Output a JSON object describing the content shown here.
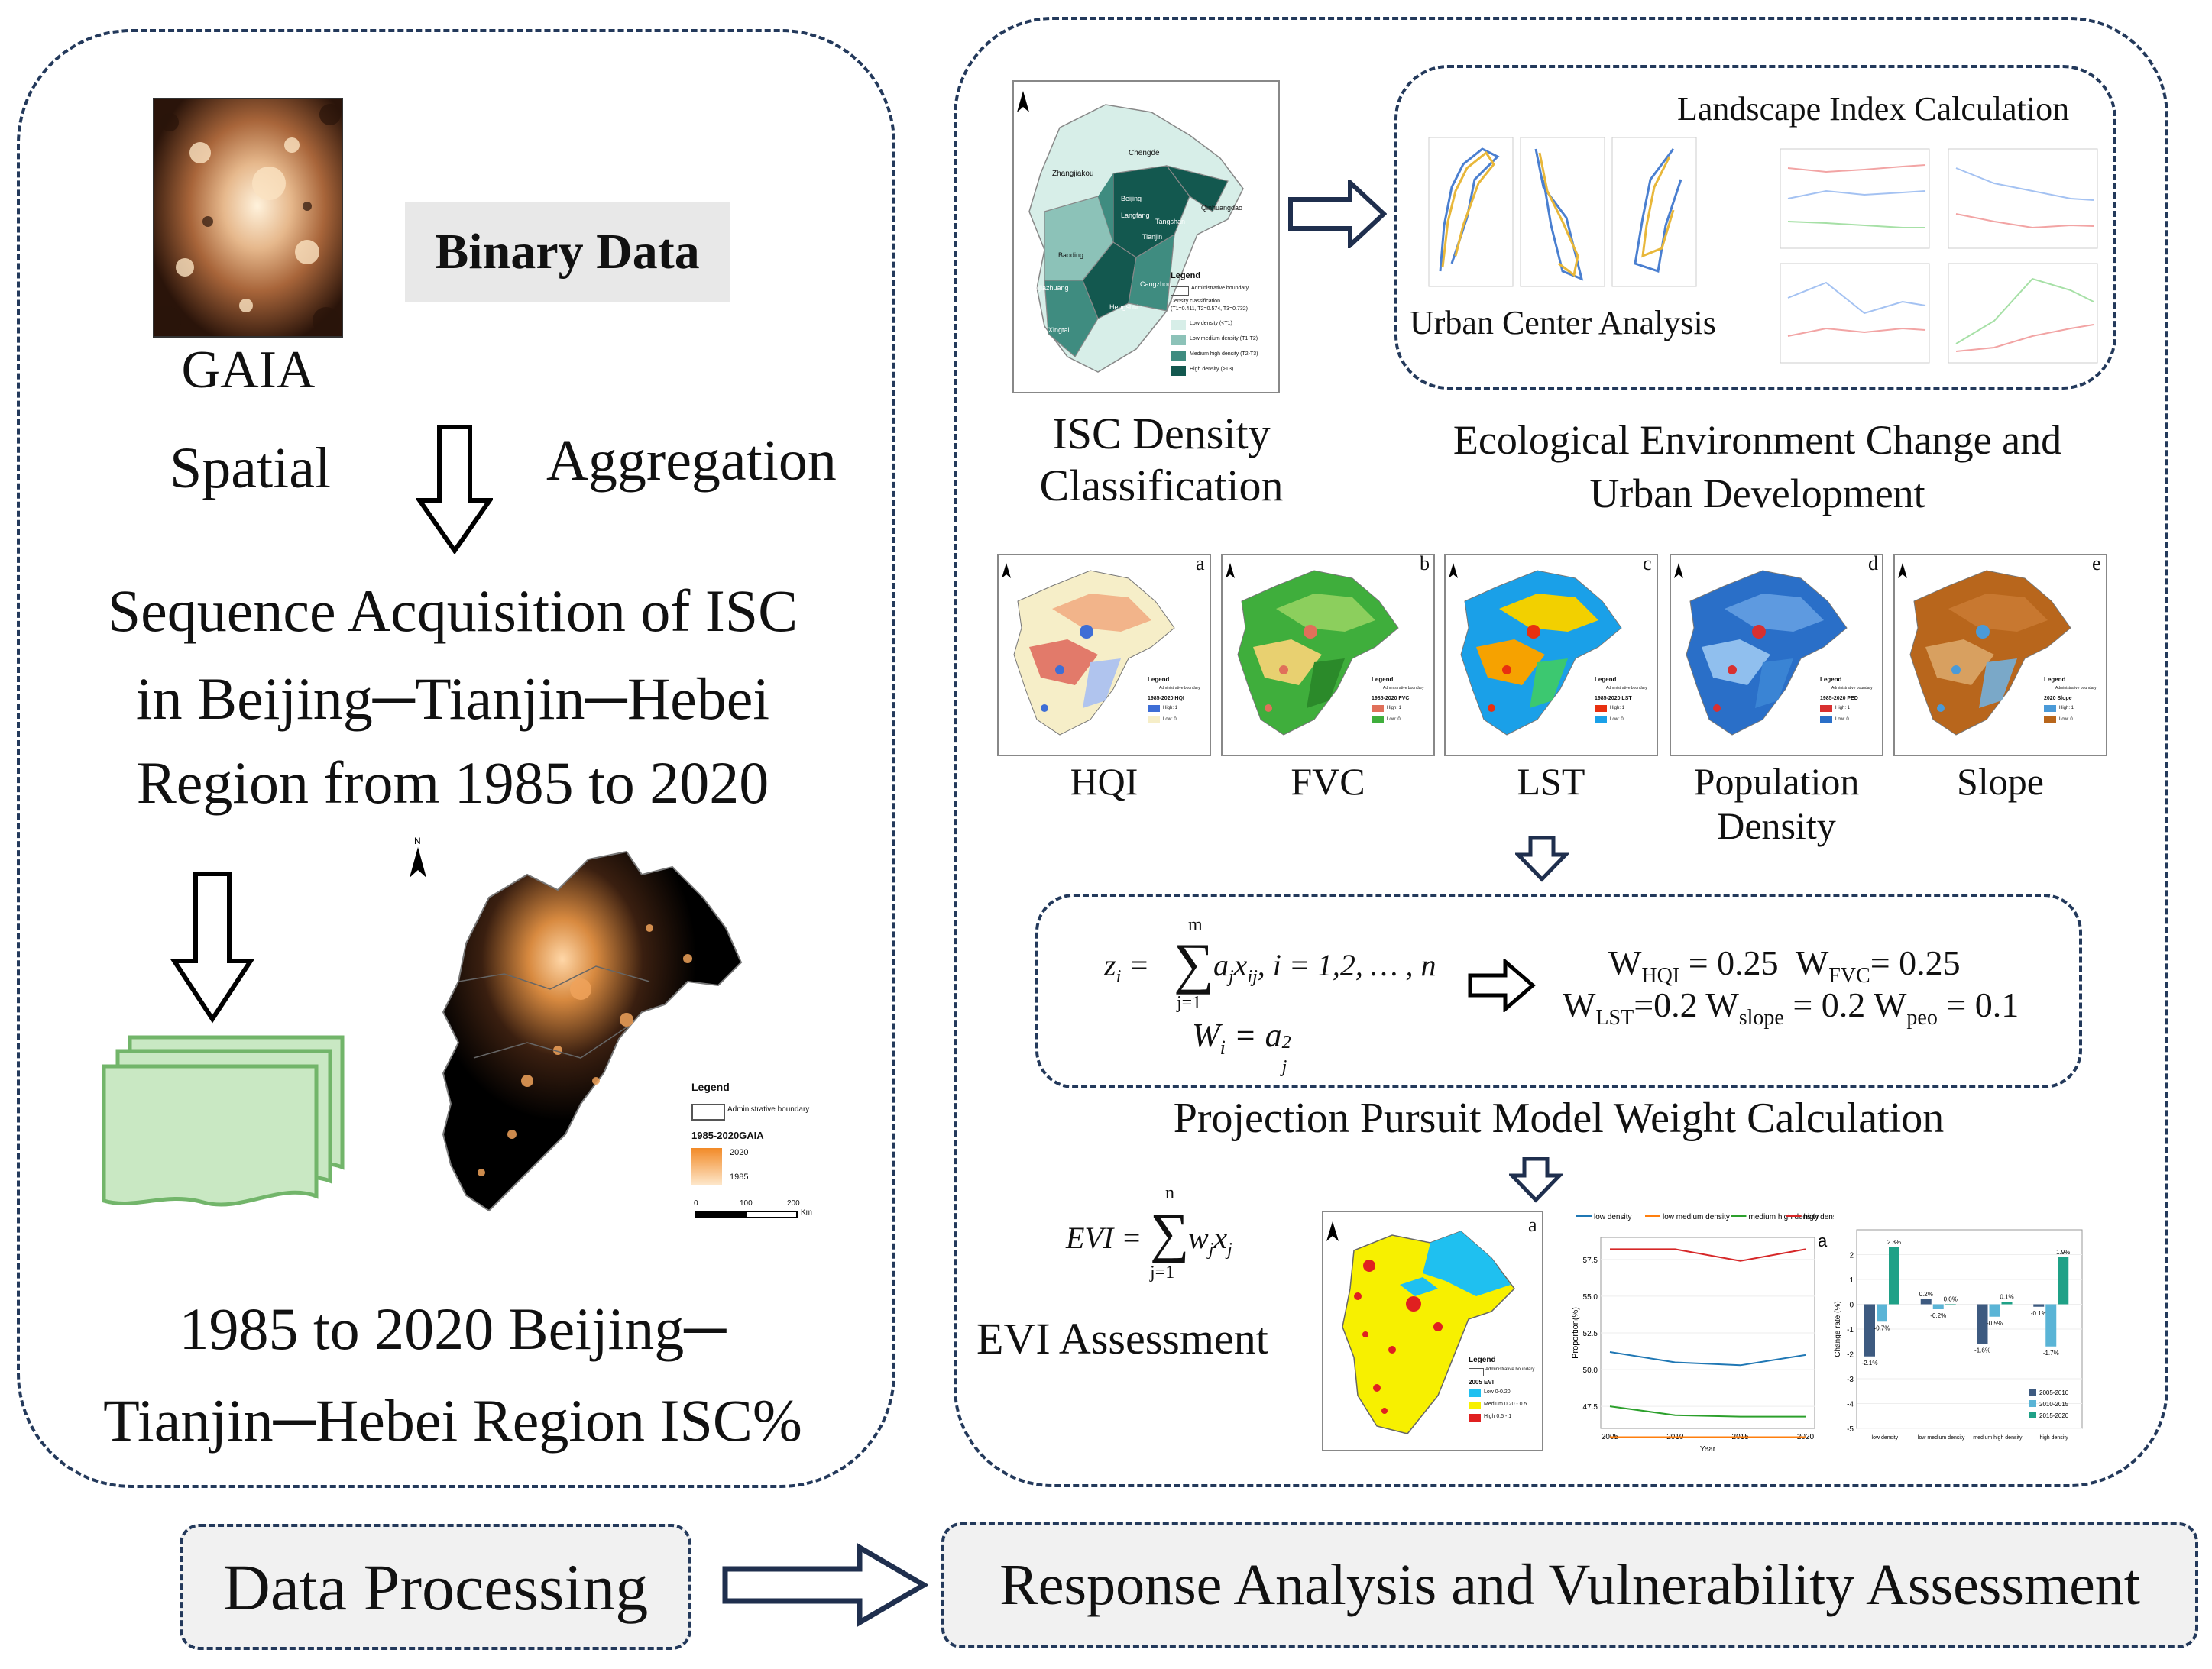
{
  "left": {
    "gaia_label": "GAIA",
    "binary_label": "Binary Data",
    "spatial_label": "Spatial",
    "aggregation_label": "Aggregation",
    "sequence_lines": [
      "Sequence Acquisition of ISC",
      "in Beijing─Tianjin─Hebei",
      "Region from 1985 to 2020"
    ],
    "result_lines": [
      "1985 to 2020 Beijing─",
      "Tianjin─Hebei Region ISC%"
    ],
    "map_legend": {
      "title": "Legend",
      "boundary": "Administrative boundary",
      "layer": "1985-2020GAIA",
      "high": "2020",
      "low": "1985",
      "scale": [
        "0",
        "100",
        "200"
      ],
      "unit": "Km",
      "north": "N"
    }
  },
  "right": {
    "isc_lines": [
      "ISC Density",
      "Classification"
    ],
    "isc_map": {
      "cities": [
        "Chengde",
        "Zhangjiakou",
        "Beijing",
        "Qinhuangdao",
        "Tangshan",
        "Langfang",
        "Tianjin",
        "Baoding",
        "Cangzhou",
        "Shijiazhuang",
        "Hengshui",
        "Xingtai",
        "Handan"
      ],
      "legend_title": "Legend",
      "boundary": "Administrative boundary",
      "classes_title": "Density classification",
      "classes_thresholds": "(T1=0.411, T2=0.574, T3=0.732)",
      "classes": [
        "Low density (<T1)",
        "Low medium density (T1-T2)",
        "Medium high density (T2-T3)",
        "High density (>T3)"
      ],
      "colors": [
        "#d7eee8",
        "#8cc2b8",
        "#3f8c80",
        "#13584f"
      ]
    },
    "landscape_label": "Landscape Index Calculation",
    "urban_center_label": "Urban Center Analysis",
    "eco_lines": [
      "Ecological Environment Change and",
      "Urban Development"
    ],
    "indicators": [
      {
        "letter": "a",
        "label": "HQI",
        "legend": "1985-2020 HQI"
      },
      {
        "letter": "b",
        "label": "FVC",
        "legend": "1985-2020 FVC"
      },
      {
        "letter": "c",
        "label": "LST",
        "legend": "1985-2020 LST"
      },
      {
        "letter": "d",
        "label": "Population\nDensity",
        "legend": "1985-2020 PED"
      },
      {
        "letter": "e",
        "label": "Slope",
        "legend": "2020 Slope"
      }
    ],
    "indicator_legend": {
      "title": "Legend",
      "boundary": "Administrative boundary",
      "high": "High: 1",
      "low": "Low: 0"
    },
    "ppm_label": "Projection Pursuit Model Weight Calculation",
    "formula": {
      "z": "z",
      "sub_i": "i",
      "eq": "=",
      "sum_top": "m",
      "sum_bot": "j=1",
      "term": "a",
      "term_sub": "j",
      "x": "x",
      "x_sub": "ij",
      "range": ", i = 1,2, … , n",
      "w_line_lhs": "W",
      "w_line_sub": "i",
      "w_line_rhs": "= a",
      "w_line_rsub": "j",
      "w_line_rsup": "2"
    },
    "weights": {
      "line1": [
        {
          "w": "W",
          "sub": "HQI",
          "val": " = 0.25  "
        },
        {
          "w": "W",
          "sub": "FVC",
          "val": "= 0.25"
        }
      ],
      "line2": [
        {
          "w": "W",
          "sub": "LST",
          "val": "=0.2 "
        },
        {
          "w": "W",
          "sub": "slope",
          "val": " = 0.2 "
        },
        {
          "w": "W",
          "sub": "peo",
          "val": " = 0.1"
        }
      ]
    },
    "evi_formula": {
      "lhs": "EVI =",
      "sum_top": "n",
      "sum_bot": "j=1",
      "term": "w",
      "term_sub": "j",
      "x": "x",
      "x_sub": "j"
    },
    "evi_label": "EVI Assessment",
    "evi_map_legend": {
      "title": "Legend",
      "boundary": "Administrative boundary",
      "layer": "2005 EVI",
      "classes": [
        "Low 0-0.20",
        "Medium 0.20 - 0.5",
        "High 0.5 - 1"
      ]
    },
    "evi_letter": "a",
    "line_chart": {
      "letter": "a",
      "series_names": [
        "low density",
        "low medium density",
        "medium high density",
        "high density"
      ],
      "colors": [
        "#1f77b4",
        "#ff7f0e",
        "#2ca02c",
        "#d62728"
      ],
      "x": [
        "2005",
        "2010",
        "2015",
        "2020"
      ],
      "y_ticks": [
        "47.5",
        "50.0",
        "52.5",
        "55.0",
        "57.5"
      ],
      "ylabel": "Proportion(%)",
      "xlabel": "Year"
    },
    "bar_chart": {
      "ylabel": "Change rate (%)",
      "categories": [
        "low density",
        "low medium density",
        "medium high density",
        "high density"
      ],
      "periods": [
        "2005-2010",
        "2010-2015",
        "2015-2020"
      ],
      "colors": [
        "#3d5a80",
        "#5ab4d6",
        "#1fa187"
      ],
      "y_ticks": [
        "2",
        "1",
        "0",
        "-1",
        "-2",
        "-3",
        "-4",
        "-5"
      ],
      "labels": [
        [
          "-2.1%",
          "-0.7%",
          "2.3%"
        ],
        [
          "0.2%",
          "-0.2%",
          "0.0%"
        ],
        [
          "-1.6%",
          "-0.5%",
          "0.1%"
        ],
        [
          "-0.1%",
          "-1.7%",
          "1.9%"
        ]
      ]
    }
  },
  "bottom": {
    "left_label": "Data Processing",
    "right_label": "Response Analysis and Vulnerability Assessment"
  }
}
